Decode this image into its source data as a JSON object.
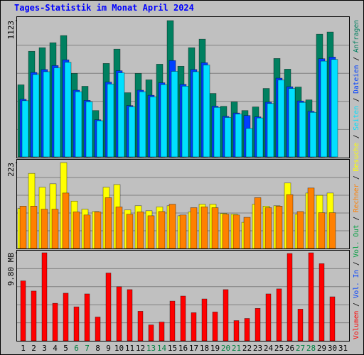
{
  "title": "Tages-Statistik im Monat April 2024",
  "legend_separator": " / ",
  "chart_data": [
    {
      "type": "bar",
      "ylim": [
        0,
        1123
      ],
      "yticks": [
        1123
      ],
      "series": [
        {
          "name": "Anfragen",
          "color": "#008060",
          "values": [
            594,
            870,
            900,
            941,
            1000,
            688,
            582,
            382,
            770,
            888,
            529,
            688,
            635,
            764,
            1123,
            747,
            900,
            970,
            523,
            417,
            453,
            382,
            412,
            564,
            811,
            723,
            576,
            470,
            1011,
            1029,
            null
          ]
        },
        {
          "name": "Dateien",
          "color": "#0040ff",
          "values": [
            475,
            696,
            720,
            753,
            800,
            550,
            466,
            306,
            616,
            710,
            423,
            550,
            508,
            611,
            794,
            598,
            720,
            776,
            418,
            334,
            362,
            341,
            330,
            451,
            649,
            578,
            461,
            376,
            809,
            823,
            null
          ]
        },
        {
          "name": "Seiten",
          "color": "#00e0ff",
          "values": [
            463,
            679,
            702,
            734,
            780,
            537,
            454,
            298,
            601,
            693,
            413,
            537,
            495,
            596,
            705,
            583,
            702,
            757,
            408,
            325,
            353,
            235,
            321,
            440,
            633,
            564,
            449,
            367,
            789,
            803,
            null
          ]
        }
      ]
    },
    {
      "type": "bar",
      "ylim": [
        0,
        223
      ],
      "yticks": [
        223
      ],
      "series": [
        {
          "name": "Besuche",
          "color": "#ffff00",
          "values": [
            104,
            195,
            159,
            168,
            223,
            123,
            102,
            96,
            159,
            166,
            100,
            111,
            98,
            108,
            111,
            85,
            95,
            115,
            115,
            91,
            89,
            68,
            115,
            110,
            111,
            170,
            89,
            144,
            138,
            144,
            null
          ]
        },
        {
          "name": "Rechner",
          "color": "#ff8000",
          "values": [
            110,
            110,
            102,
            102,
            144,
            95,
            87,
            95,
            132,
            108,
            89,
            95,
            85,
            96,
            115,
            87,
            106,
            108,
            106,
            89,
            87,
            81,
            132,
            106,
            110,
            140,
            96,
            157,
            93,
            93,
            null
          ]
        }
      ]
    },
    {
      "type": "bar",
      "ylim": [
        0,
        9.8
      ],
      "yticks": [
        {
          "value": 9.8,
          "label": "9.80 MB"
        }
      ],
      "categories": [
        "1",
        "2",
        "3",
        "4",
        "5",
        "6",
        "7",
        "8",
        "9",
        "10",
        "11",
        "12",
        "13",
        "14",
        "15",
        "16",
        "17",
        "18",
        "19",
        "20",
        "21",
        "22",
        "23",
        "24",
        "25",
        "26",
        "27",
        "28",
        "29",
        "30",
        "31"
      ],
      "category_colors": [
        "#000000",
        "#000000",
        "#000000",
        "#000000",
        "#000000",
        "#008040",
        "#008040",
        "#000000",
        "#000000",
        "#000000",
        "#000000",
        "#000000",
        "#008040",
        "#008040",
        "#000000",
        "#000000",
        "#000000",
        "#000000",
        "#000000",
        "#008040",
        "#008040",
        "#000000",
        "#000000",
        "#000000",
        "#000000",
        "#000000",
        "#008040",
        "#008040",
        "#000000",
        "#000000",
        "#000000"
      ],
      "series": [
        {
          "name": "Vol. Out",
          "color": "#00a040"
        },
        {
          "name": "Vol. In",
          "color": "#0040ff"
        },
        {
          "name": "Volumen",
          "color": "#ff0000",
          "values": [
            6.67,
            5.54,
            9.8,
            4.18,
            5.3,
            3.78,
            5.22,
            2.65,
            7.55,
            6.02,
            5.7,
            3.29,
            1.77,
            2.09,
            4.42,
            4.98,
            3.13,
            4.66,
            3.21,
            5.7,
            2.25,
            2.49,
            3.61,
            5.22,
            5.78,
            9.72,
            3.53,
            9.8,
            8.59,
            4.9,
            null
          ]
        }
      ]
    }
  ]
}
